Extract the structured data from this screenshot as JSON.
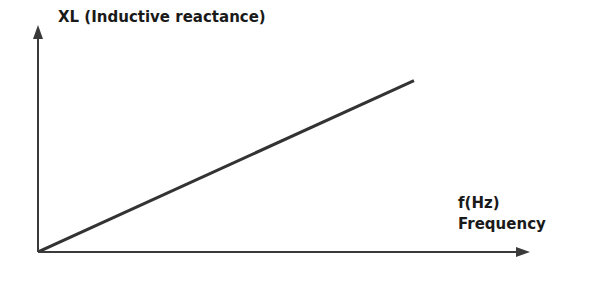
{
  "chart_data": {
    "type": "line",
    "y_label": "XL (Inductive reactance)",
    "x_label": [
      "f(Hz)",
      "Frequency"
    ],
    "x": [
      0,
      7.8
    ],
    "values": [
      0,
      7.9
    ],
    "color": "#333333",
    "xlim": [
      0,
      10
    ],
    "ylim": [
      0,
      10
    ],
    "grid": false,
    "tick_labels": false
  }
}
